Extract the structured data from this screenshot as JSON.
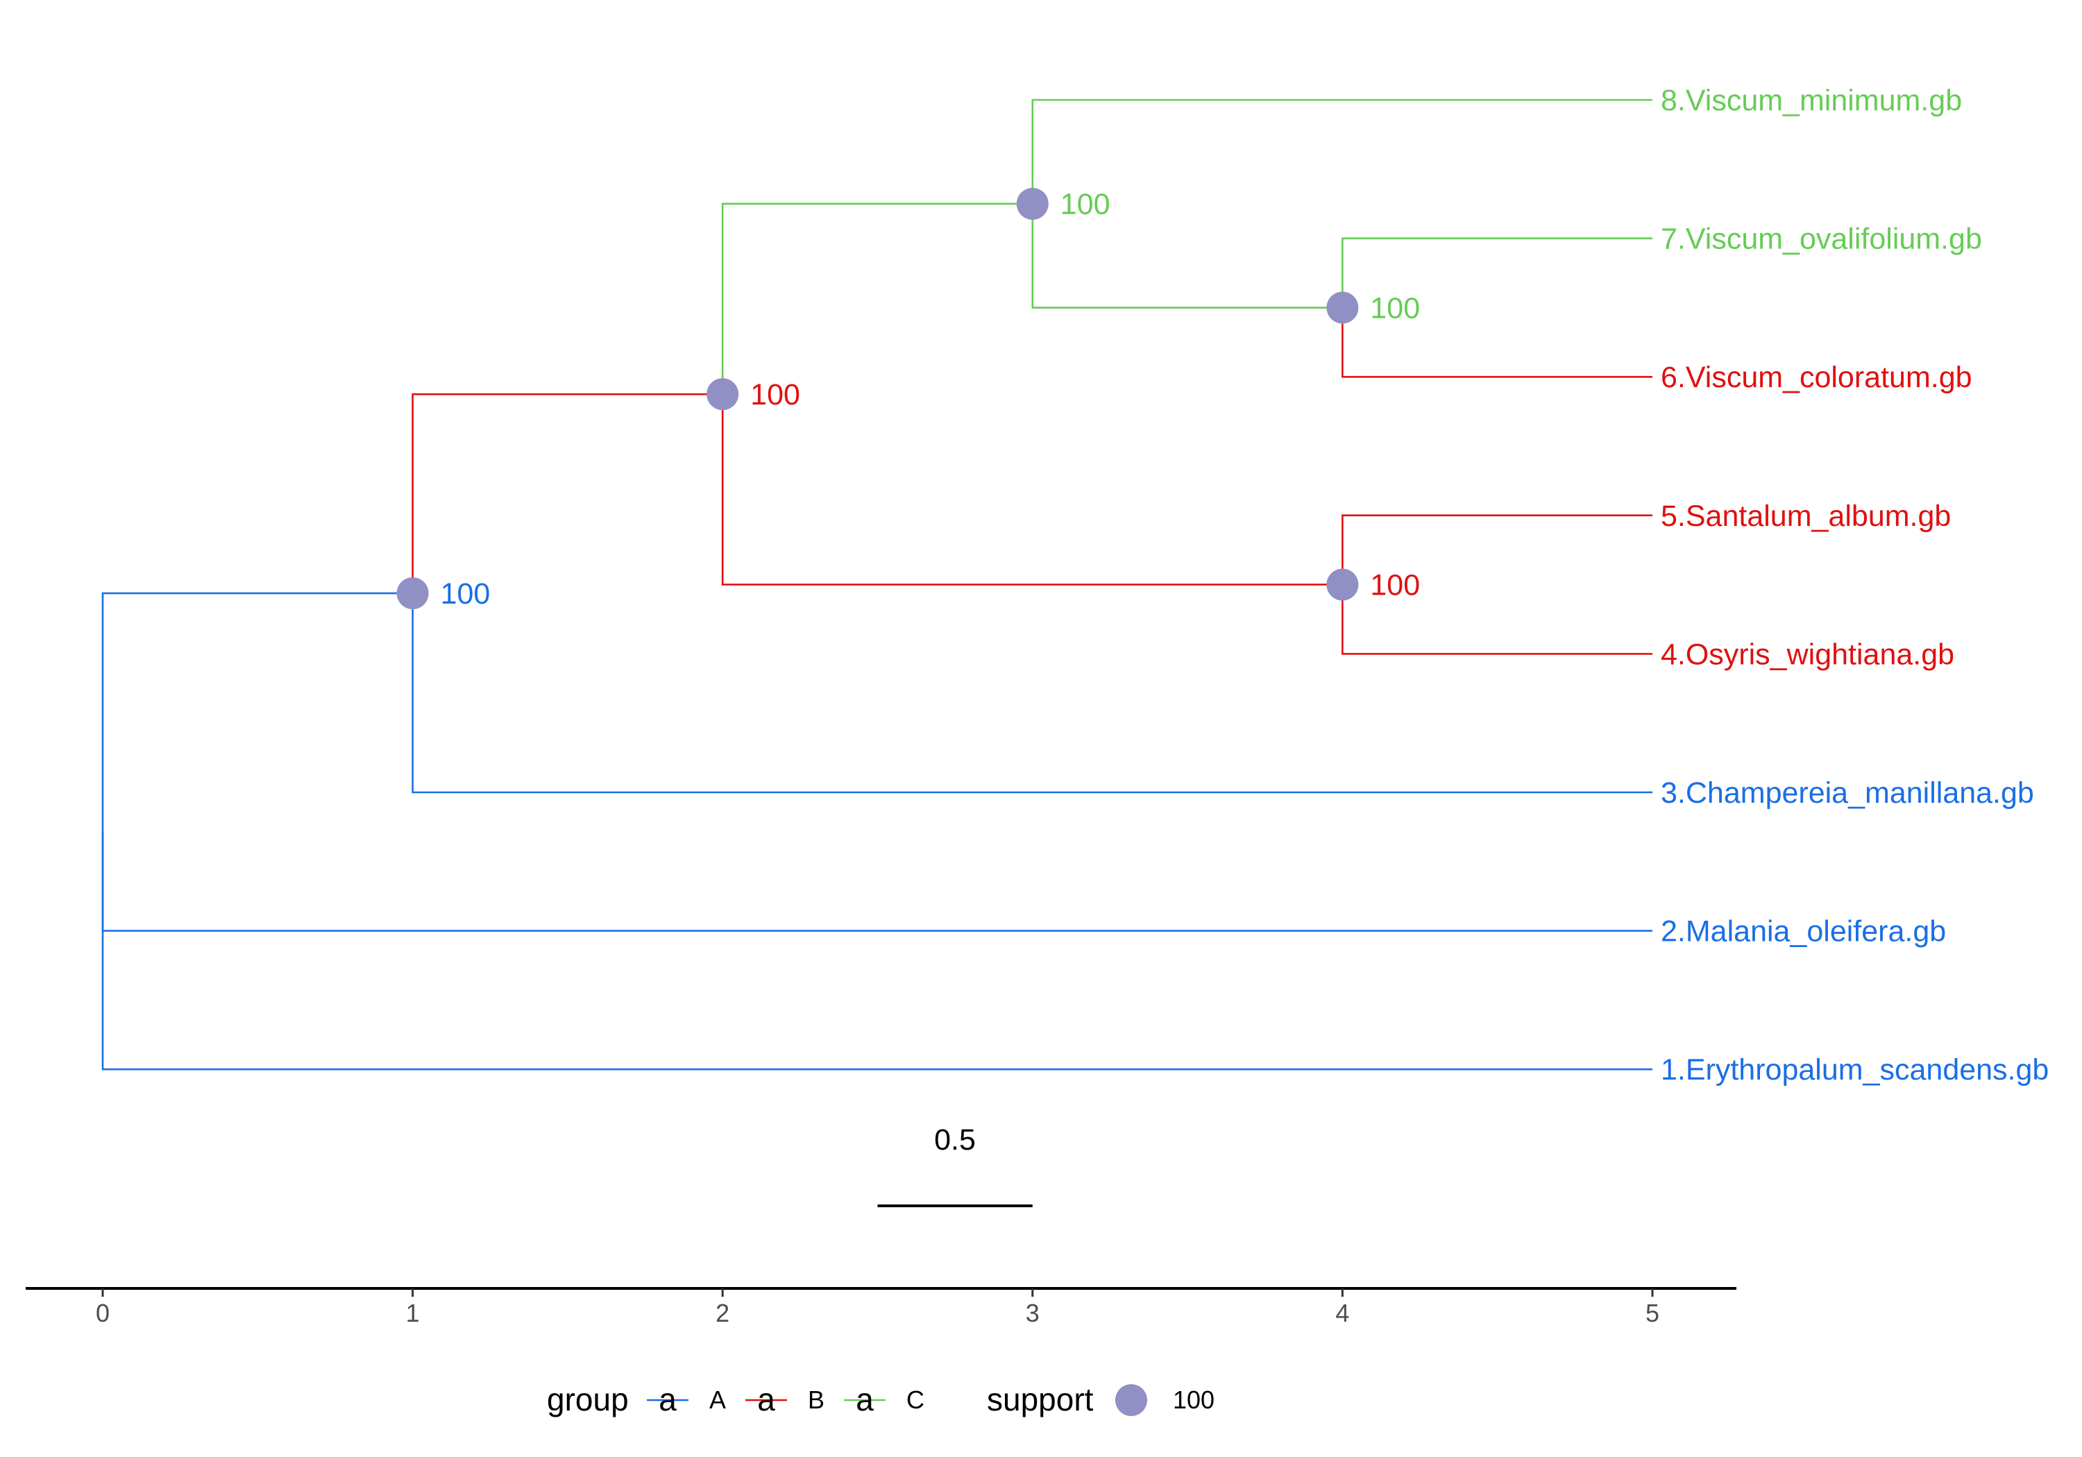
{
  "groups": [
    {
      "key": "A",
      "label": "A",
      "color": "#1a6ee6"
    },
    {
      "key": "B",
      "label": "B",
      "color": "#e01010"
    },
    {
      "key": "C",
      "label": "C",
      "color": "#66cc55"
    }
  ],
  "node_color": "#9090c4",
  "tips": [
    {
      "id": "t8",
      "label": "8.Viscum_minimum.gb",
      "group": "C"
    },
    {
      "id": "t7",
      "label": "7.Viscum_ovalifolium.gb",
      "group": "C"
    },
    {
      "id": "t6",
      "label": "6.Viscum_coloratum.gb",
      "group": "B"
    },
    {
      "id": "t5",
      "label": "5.Santalum_album.gb",
      "group": "B"
    },
    {
      "id": "t4",
      "label": "4.Osyris_wightiana.gb",
      "group": "B"
    },
    {
      "id": "t3",
      "label": "3.Champereia_manillana.gb",
      "group": "A"
    },
    {
      "id": "t2",
      "label": "2.Malania_oleifera.gb",
      "group": "A"
    },
    {
      "id": "t1",
      "label": "1.Erythropalum_scandens.gb",
      "group": "A"
    }
  ],
  "nodes": [
    {
      "id": "n1",
      "depth": 1,
      "support": "100",
      "group": "A",
      "children": [
        "n2",
        "t3"
      ]
    },
    {
      "id": "n2",
      "depth": 2,
      "support": "100",
      "group": "B",
      "children": [
        "n3",
        "n5"
      ]
    },
    {
      "id": "n3",
      "depth": 3,
      "support": "100",
      "group": "C",
      "children": [
        "t8",
        "n4"
      ]
    },
    {
      "id": "n4",
      "depth": 4,
      "support": "100",
      "group": "C",
      "children": [
        "t7",
        "t6"
      ]
    },
    {
      "id": "n5",
      "depth": 4,
      "support": "100",
      "group": "B",
      "children": [
        "t5",
        "t4"
      ]
    }
  ],
  "root": {
    "id": "root",
    "depth": 0,
    "group": "A",
    "children": [
      "n1",
      "t2",
      "t1"
    ]
  },
  "tip_depth": 5,
  "scale_bar": {
    "label": "0.5",
    "length": 0.5
  },
  "axis": {
    "ticks": [
      "0",
      "1",
      "2",
      "3",
      "4",
      "5"
    ],
    "min": 0,
    "max": 5
  },
  "legend": {
    "group_title": "group",
    "glyph": "a",
    "support_title": "support",
    "support_value": "100"
  }
}
